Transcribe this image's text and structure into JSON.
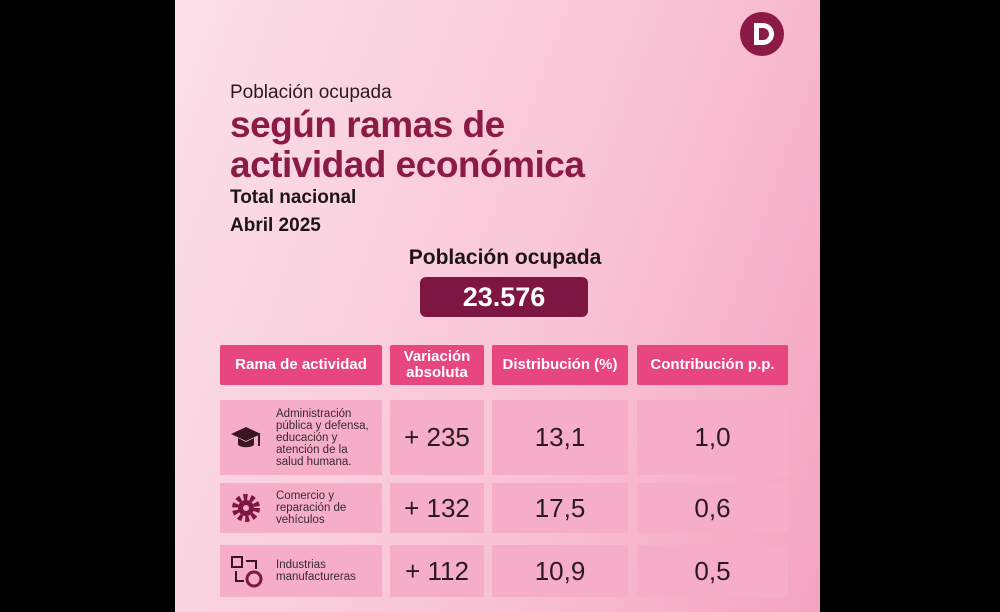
{
  "header": {
    "subtitle": "Población ocupada",
    "title_lines": [
      "según ramas de",
      "actividad económica"
    ],
    "scope": "Total nacional",
    "period": "Abril 2025"
  },
  "highlight": {
    "label": "Población ocupada",
    "value": "23.576"
  },
  "table": {
    "columns": [
      "Rama de actividad",
      "Variación absoluta",
      "Distribución (%)",
      "Contribución p.p."
    ],
    "rows": [
      [
        "Administración pública y defensa, educación y atención de la salud humana.",
        "+ 235",
        "13,1",
        "1,0"
      ],
      [
        "Comercio y reparación de vehículos",
        "+ 132",
        "17,5",
        "0,6"
      ],
      [
        "Industrias manufactureras",
        "+ 112",
        "10,9",
        "0,5"
      ]
    ]
  }
}
